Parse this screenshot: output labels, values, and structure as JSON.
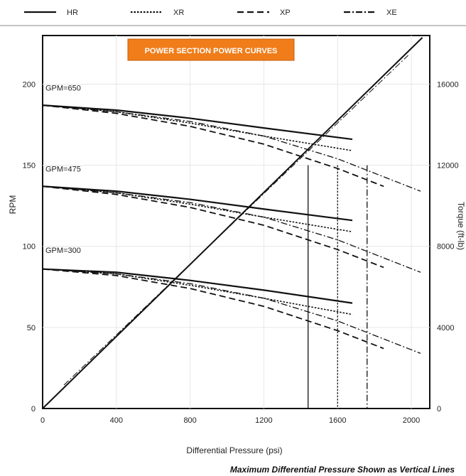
{
  "chart_data": {
    "type": "line",
    "title": "POWER SECTION POWER CURVES",
    "title_color": "#f07d1a",
    "xlabel": "Differential Pressure (psi)",
    "ylabel": "RPM",
    "y2label": "Torque (ft-lb)",
    "footnote": "Maximum Differential Pressure Shown as Vertical Lines",
    "xlim": [
      0,
      2100
    ],
    "ylim": [
      0,
      230
    ],
    "y2lim": [
      0,
      18400
    ],
    "xticks": [
      "0",
      "400",
      "800",
      "1200",
      "1600",
      "2000"
    ],
    "xtick_values": [
      0,
      400,
      800,
      1200,
      1600,
      2000
    ],
    "yticks": [
      "0",
      "50",
      "100",
      "150",
      "200"
    ],
    "ytick_values": [
      0,
      50,
      100,
      150,
      200
    ],
    "y2ticks": [
      "0",
      "4000",
      "8000",
      "12000",
      "16000"
    ],
    "y2tick_values": [
      0,
      4000,
      8000,
      12000,
      16000
    ],
    "legend_position": "top",
    "legend": [
      {
        "name": "HR",
        "style": "solid"
      },
      {
        "name": "XR",
        "style": "dotted"
      },
      {
        "name": "XP",
        "style": "dashed"
      },
      {
        "name": "XE",
        "style": "dashdot"
      }
    ],
    "flow_labels": [
      {
        "text": "GPM=650",
        "rpm": 196
      },
      {
        "text": "GPM=475",
        "rpm": 146
      },
      {
        "text": "GPM=300",
        "rpm": 96
      }
    ],
    "rpm_series": [
      {
        "name": "HR",
        "gpm": 650,
        "x": [
          0,
          400,
          800,
          1200,
          1680
        ],
        "y": [
          187,
          184,
          179,
          173,
          166
        ]
      },
      {
        "name": "XR",
        "gpm": 650,
        "x": [
          0,
          400,
          800,
          1200,
          1680
        ],
        "y": [
          187,
          183,
          176,
          168,
          159
        ]
      },
      {
        "name": "XP",
        "gpm": 650,
        "x": [
          0,
          400,
          800,
          1200,
          1600,
          1850
        ],
        "y": [
          187,
          182,
          174,
          163,
          148,
          137
        ]
      },
      {
        "name": "XE",
        "gpm": 650,
        "x": [
          0,
          400,
          800,
          1200,
          1600,
          2050
        ],
        "y": [
          187,
          183,
          177,
          168,
          154,
          134
        ]
      },
      {
        "name": "HR",
        "gpm": 475,
        "x": [
          0,
          400,
          800,
          1200,
          1680
        ],
        "y": [
          137,
          134,
          129,
          123,
          116
        ]
      },
      {
        "name": "XR",
        "gpm": 475,
        "x": [
          0,
          400,
          800,
          1200,
          1680
        ],
        "y": [
          137,
          133,
          126,
          118,
          109
        ]
      },
      {
        "name": "XP",
        "gpm": 475,
        "x": [
          0,
          400,
          800,
          1200,
          1600,
          1850
        ],
        "y": [
          137,
          132,
          124,
          113,
          98,
          87
        ]
      },
      {
        "name": "XE",
        "gpm": 475,
        "x": [
          0,
          400,
          800,
          1200,
          1600,
          2050
        ],
        "y": [
          137,
          133,
          127,
          118,
          104,
          84
        ]
      },
      {
        "name": "HR",
        "gpm": 300,
        "x": [
          0,
          400,
          800,
          1200,
          1680
        ],
        "y": [
          86,
          84,
          79,
          73,
          65
        ]
      },
      {
        "name": "XR",
        "gpm": 300,
        "x": [
          0,
          400,
          800,
          1200,
          1680
        ],
        "y": [
          86,
          83,
          76,
          68,
          58
        ]
      },
      {
        "name": "XP",
        "gpm": 300,
        "x": [
          0,
          400,
          800,
          1200,
          1600,
          1850
        ],
        "y": [
          86,
          82,
          74,
          63,
          48,
          37
        ]
      },
      {
        "name": "XE",
        "gpm": 300,
        "x": [
          0,
          400,
          800,
          1200,
          1600,
          2050
        ],
        "y": [
          86,
          83,
          77,
          68,
          54,
          34
        ]
      }
    ],
    "torque_series": {
      "name": "Torque",
      "x": [
        0,
        2060
      ],
      "y": [
        0,
        18300
      ]
    },
    "max_pressure_lines": [
      {
        "name": "HR",
        "x": 1440
      },
      {
        "name": "XR",
        "x": 1600
      },
      {
        "name": "XE",
        "x": 1760
      }
    ]
  }
}
